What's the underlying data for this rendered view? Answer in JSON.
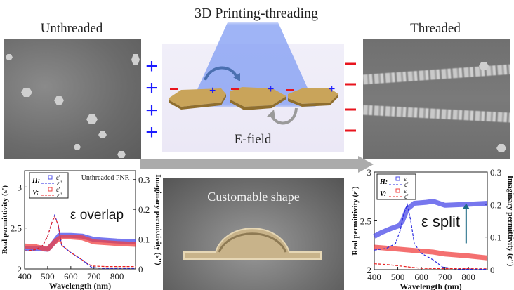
{
  "figure": {
    "title": "3D Printing-threading",
    "left_label": "Unthreaded",
    "right_label": "Threaded",
    "efield_label": "E-field",
    "shape_label": "Customable shape",
    "colors": {
      "positive": "#1a1aff",
      "negative": "#e8141e",
      "beam": "#7f9bf3",
      "flake": "#c9a45a",
      "arrow": "#aaaaaa"
    },
    "plus_sign": "+",
    "minus_sign": "−"
  },
  "chart_data": [
    {
      "type": "line",
      "annotation": "ε overlap",
      "panel_title": "Unthreaded PNR",
      "xlabel": "Wavelength (nm)",
      "ylabel": "Real permittivity (ε')",
      "y2label": "Imaginary permittivity (ε'')",
      "xlim": [
        400,
        880
      ],
      "ylim": [
        2,
        3.2
      ],
      "y2lim": [
        0,
        0.33
      ],
      "xticks": [
        400,
        500,
        600,
        700,
        800
      ],
      "yticks": [
        2,
        2.5,
        3
      ],
      "y2ticks": [
        0,
        0.1,
        0.2,
        0.3
      ],
      "legend": {
        "H": "H:",
        "V": "V:",
        "real": "ε'",
        "imag": "ε''",
        "placement": "top-left"
      },
      "series": [
        {
          "name": "H ε'",
          "axis": "left",
          "style": "band",
          "color": "#4a4ae8",
          "x": [
            400,
            450,
            500,
            520,
            550,
            600,
            650,
            700,
            800,
            880
          ],
          "y": [
            2.25,
            2.25,
            2.24,
            2.3,
            2.41,
            2.41,
            2.4,
            2.36,
            2.34,
            2.33
          ]
        },
        {
          "name": "V ε'",
          "axis": "left",
          "style": "band",
          "color": "#f04040",
          "x": [
            400,
            450,
            500,
            530,
            560,
            600,
            650,
            700,
            800,
            880
          ],
          "y": [
            2.28,
            2.27,
            2.24,
            2.33,
            2.39,
            2.39,
            2.38,
            2.33,
            2.31,
            2.3
          ]
        },
        {
          "name": "H ε''",
          "axis": "right",
          "style": "dash",
          "color": "#2a2ae0",
          "x": [
            400,
            450,
            480,
            500,
            520,
            530,
            545,
            560,
            600,
            650,
            690,
            750,
            880
          ],
          "y": [
            0.06,
            0.065,
            0.08,
            0.11,
            0.16,
            0.18,
            0.15,
            0.08,
            0.055,
            0.03,
            0.005,
            0.002,
            0.002
          ]
        },
        {
          "name": "V ε''",
          "axis": "right",
          "style": "dash",
          "color": "#e82020",
          "x": [
            400,
            450,
            480,
            500,
            520,
            530,
            545,
            560,
            600,
            650,
            690,
            750,
            880
          ],
          "y": [
            0.06,
            0.065,
            0.08,
            0.11,
            0.16,
            0.175,
            0.15,
            0.08,
            0.055,
            0.03,
            0.01,
            0.008,
            0.008
          ]
        }
      ]
    },
    {
      "type": "line",
      "annotation": "ε  split",
      "xlabel": "Wavelength (nm)",
      "ylabel": "Real permittivity (ε')",
      "y2label": "Imaginary permittivity (ε'')",
      "xlim": [
        400,
        880
      ],
      "ylim": [
        2,
        3
      ],
      "y2lim": [
        0,
        0.3
      ],
      "xticks": [
        400,
        500,
        600,
        700,
        800
      ],
      "yticks": [
        2,
        2.5,
        3
      ],
      "y2ticks": [
        0,
        0.1,
        0.2,
        0.3
      ],
      "legend": {
        "H": "H:",
        "V": "V:",
        "real": "ε'",
        "imag": "ε''",
        "placement": "top-left"
      },
      "series": [
        {
          "name": "H ε'",
          "axis": "left",
          "style": "band",
          "color": "#4a4ae8",
          "x": [
            400,
            430,
            470,
            505,
            520,
            540,
            570,
            620,
            650,
            700,
            800,
            880
          ],
          "y": [
            2.34,
            2.38,
            2.42,
            2.45,
            2.5,
            2.62,
            2.68,
            2.69,
            2.7,
            2.66,
            2.67,
            2.68
          ]
        },
        {
          "name": "V ε'",
          "axis": "left",
          "style": "band",
          "color": "#f04040",
          "x": [
            400,
            500,
            600,
            650,
            700,
            800,
            880
          ],
          "y": [
            2.23,
            2.21,
            2.19,
            2.18,
            2.16,
            2.14,
            2.12
          ]
        },
        {
          "name": "H ε''",
          "axis": "right",
          "style": "dash",
          "color": "#2a2ae0",
          "x": [
            400,
            450,
            490,
            510,
            525,
            540,
            555,
            570,
            600,
            650,
            690,
            750,
            880
          ],
          "y": [
            0.06,
            0.065,
            0.08,
            0.12,
            0.17,
            0.2,
            0.15,
            0.08,
            0.05,
            0.03,
            0.008,
            0.002,
            0.001
          ]
        },
        {
          "name": "V ε''",
          "axis": "right",
          "style": "dash",
          "color": "#e82020",
          "x": [
            400,
            450,
            500,
            550,
            600,
            700,
            880
          ],
          "y": [
            0.018,
            0.016,
            0.012,
            0.008,
            0.004,
            0.003,
            0.004
          ]
        }
      ]
    }
  ]
}
